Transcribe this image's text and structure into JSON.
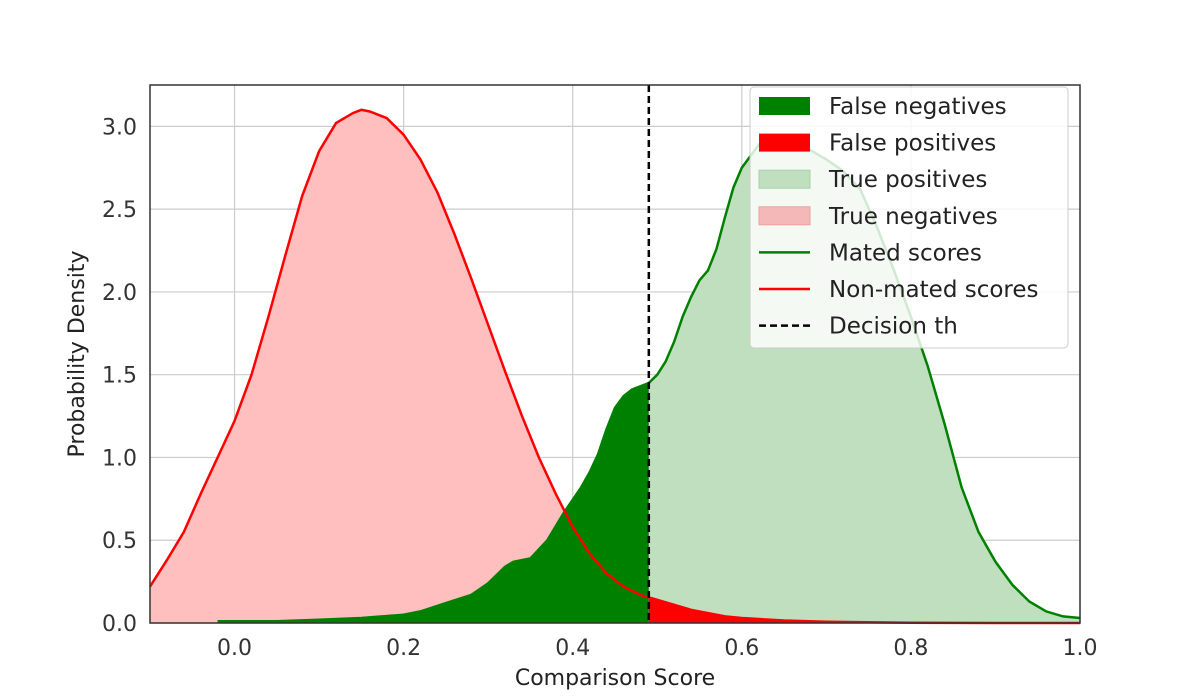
{
  "chart_data": {
    "type": "area",
    "xlabel": "Comparison Score",
    "ylabel": "Probability Density",
    "xlim": [
      -0.1,
      1.0
    ],
    "ylim": [
      0,
      3.25
    ],
    "xticks": [
      "0.0",
      "0.2",
      "0.4",
      "0.6",
      "0.8",
      "1.0"
    ],
    "yticks": [
      "0.0",
      "0.5",
      "1.0",
      "1.5",
      "2.0",
      "2.5",
      "3.0"
    ],
    "grid": true,
    "legend_position": "top-right",
    "threshold": 0.49,
    "colors": {
      "mated": "#008000",
      "non_mated": "#ff0000",
      "true_pos_fill": "#bfdfbf",
      "true_neg_fill": "#ffbfbf",
      "false_neg_fill": "#008000",
      "false_pos_fill": "#ff0000",
      "threshold": "#000000"
    },
    "legend": [
      {
        "label": "False negatives",
        "kind": "patch",
        "color": "#008000"
      },
      {
        "label": "False positives",
        "kind": "patch",
        "color": "#ff0000"
      },
      {
        "label": "True positives",
        "kind": "patch",
        "color": "#bfdfbf"
      },
      {
        "label": "True negatives",
        "kind": "patch",
        "color": "#f4b8b8"
      },
      {
        "label": "Mated scores",
        "kind": "line",
        "color": "#008000"
      },
      {
        "label": "Non-mated scores",
        "kind": "line",
        "color": "#ff0000"
      },
      {
        "label": "Decision th",
        "kind": "dashed",
        "color": "#000000"
      }
    ],
    "series": [
      {
        "name": "Mated scores",
        "x": [
          -0.02,
          0.0,
          0.05,
          0.1,
          0.15,
          0.2,
          0.22,
          0.25,
          0.28,
          0.3,
          0.32,
          0.33,
          0.35,
          0.37,
          0.39,
          0.41,
          0.42,
          0.43,
          0.44,
          0.45,
          0.46,
          0.47,
          0.48,
          0.49,
          0.5,
          0.51,
          0.52,
          0.53,
          0.54,
          0.55,
          0.56,
          0.57,
          0.58,
          0.59,
          0.6,
          0.61,
          0.62,
          0.63,
          0.64,
          0.66,
          0.68,
          0.7,
          0.72,
          0.74,
          0.76,
          0.78,
          0.8,
          0.82,
          0.84,
          0.86,
          0.88,
          0.9,
          0.92,
          0.94,
          0.96,
          0.98,
          1.0
        ],
        "y": [
          0.01,
          0.01,
          0.01,
          0.02,
          0.03,
          0.05,
          0.07,
          0.12,
          0.17,
          0.24,
          0.34,
          0.37,
          0.39,
          0.5,
          0.67,
          0.82,
          0.91,
          1.02,
          1.17,
          1.3,
          1.37,
          1.41,
          1.43,
          1.45,
          1.5,
          1.58,
          1.7,
          1.85,
          1.97,
          2.07,
          2.13,
          2.26,
          2.45,
          2.63,
          2.75,
          2.82,
          2.89,
          2.93,
          2.95,
          2.9,
          2.86,
          2.8,
          2.73,
          2.62,
          2.39,
          2.13,
          1.85,
          1.55,
          1.2,
          0.82,
          0.55,
          0.37,
          0.23,
          0.13,
          0.07,
          0.04,
          0.03
        ]
      },
      {
        "name": "Non-mated scores",
        "x": [
          -0.1,
          -0.08,
          -0.06,
          -0.04,
          -0.02,
          0.0,
          0.02,
          0.04,
          0.06,
          0.08,
          0.1,
          0.12,
          0.14,
          0.15,
          0.16,
          0.18,
          0.2,
          0.22,
          0.24,
          0.26,
          0.28,
          0.3,
          0.32,
          0.34,
          0.36,
          0.38,
          0.4,
          0.42,
          0.44,
          0.46,
          0.48,
          0.5,
          0.52,
          0.54,
          0.56,
          0.58,
          0.6,
          0.65,
          0.7,
          0.75,
          0.8,
          0.9,
          1.0
        ],
        "y": [
          0.22,
          0.38,
          0.55,
          0.78,
          1.0,
          1.22,
          1.5,
          1.85,
          2.22,
          2.58,
          2.85,
          3.02,
          3.08,
          3.1,
          3.09,
          3.05,
          2.95,
          2.8,
          2.6,
          2.35,
          2.08,
          1.8,
          1.52,
          1.25,
          1.0,
          0.78,
          0.58,
          0.42,
          0.3,
          0.22,
          0.17,
          0.14,
          0.11,
          0.08,
          0.06,
          0.04,
          0.03,
          0.015,
          0.008,
          0.004,
          0.002,
          0.0,
          0.0
        ]
      }
    ]
  }
}
